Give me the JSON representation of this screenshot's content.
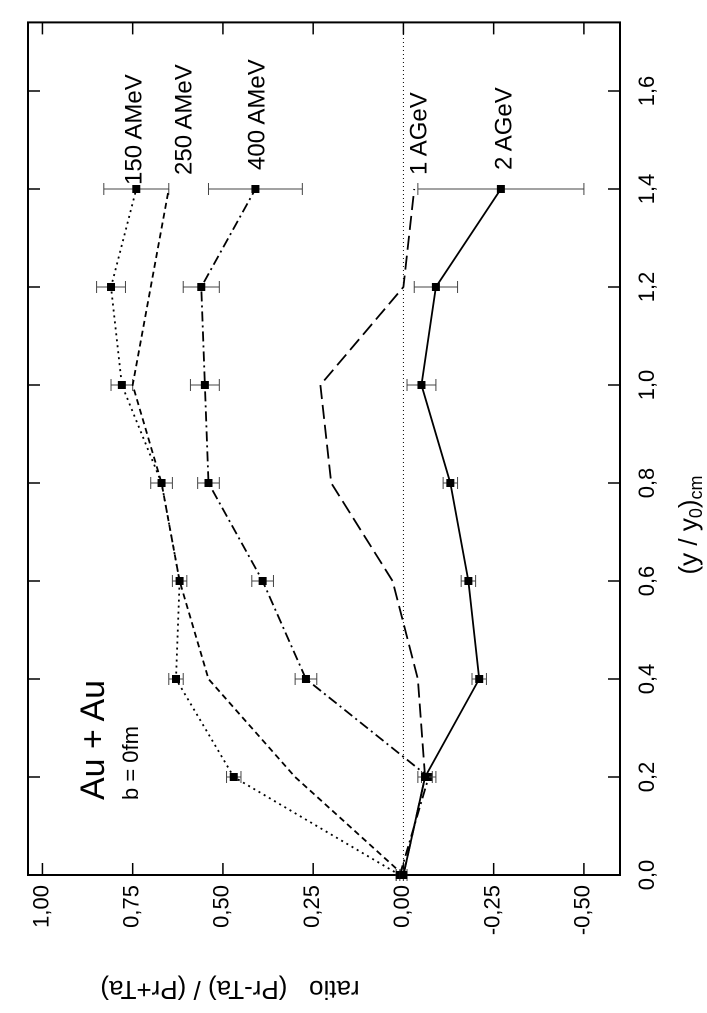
{
  "chart_data": {
    "type": "line",
    "xlabel": [
      "(y / y",
      "0",
      ")",
      "cm"
    ],
    "ylabel": "ratio   (Pr-Ta) / (Pr+Ta)",
    "annotations": [
      "Au + Au",
      "b = 0fm"
    ],
    "x": [
      0,
      0.2,
      0.4,
      0.6,
      0.8,
      1.0,
      1.2,
      1.4
    ],
    "series": [
      {
        "name": "150 AMeV",
        "color": "#000000",
        "dash": "dotted",
        "markers": true,
        "values": [
          0.01,
          0.47,
          0.63,
          0.62,
          0.67,
          0.78,
          0.81,
          0.74
        ],
        "errors": [
          0.01,
          0.02,
          0.02,
          0.02,
          0.03,
          0.03,
          0.04,
          0.09
        ]
      },
      {
        "name": "250 AMeV",
        "color": "#000000",
        "dash": "dashed",
        "markers": false,
        "values": [
          0.0,
          0.3,
          0.54,
          0.62,
          0.67,
          0.75,
          0.7,
          0.65
        ]
      },
      {
        "name": "400 AMeV",
        "color": "#000000",
        "dash": "dashdot",
        "markers": true,
        "values": [
          0.01,
          -0.07,
          0.27,
          0.39,
          0.54,
          0.55,
          0.56,
          0.41
        ],
        "errors": [
          0.01,
          0.02,
          0.03,
          0.03,
          0.03,
          0.04,
          0.05,
          0.13
        ]
      },
      {
        "name": "1 AGeV",
        "color": "#000000",
        "dash": "longdash",
        "markers": false,
        "values": [
          0.0,
          -0.06,
          -0.04,
          0.03,
          0.2,
          0.23,
          0.0,
          -0.03
        ]
      },
      {
        "name": "2 AGeV",
        "color": "#000000",
        "dash": "solid",
        "markers": true,
        "values": [
          0.0,
          -0.06,
          -0.21,
          -0.18,
          -0.13,
          -0.05,
          -0.09,
          -0.27
        ],
        "errors": [
          0.01,
          0.02,
          0.02,
          0.02,
          0.02,
          0.04,
          0.06,
          0.23
        ]
      }
    ],
    "xlim": [
      0,
      1.74
    ],
    "xticks": [
      {
        "value": 0,
        "label": "0,0"
      },
      {
        "value": 0.2,
        "label": "0,2"
      },
      {
        "value": 0.4,
        "label": "0,4"
      },
      {
        "value": 0.6,
        "label": "0,6"
      },
      {
        "value": 0.8,
        "label": "0,8"
      },
      {
        "value": 1.0,
        "label": "1,0"
      },
      {
        "value": 1.2,
        "label": "1,2"
      },
      {
        "value": 1.4,
        "label": "1,4"
      },
      {
        "value": 1.6,
        "label": "1,6"
      }
    ],
    "ylim": [
      -0.6,
      1.04
    ],
    "yticks": [
      {
        "value": -0.5,
        "label": "-0,50"
      },
      {
        "value": -0.25,
        "label": "-0,25"
      },
      {
        "value": 0,
        "label": "0,00"
      },
      {
        "value": 0.25,
        "label": "0,25"
      },
      {
        "value": 0.5,
        "label": "0,50"
      },
      {
        "value": 0.75,
        "label": "0,75"
      },
      {
        "value": 1.0,
        "label": "1,00"
      }
    ],
    "zero_line": true,
    "rotated": true
  }
}
